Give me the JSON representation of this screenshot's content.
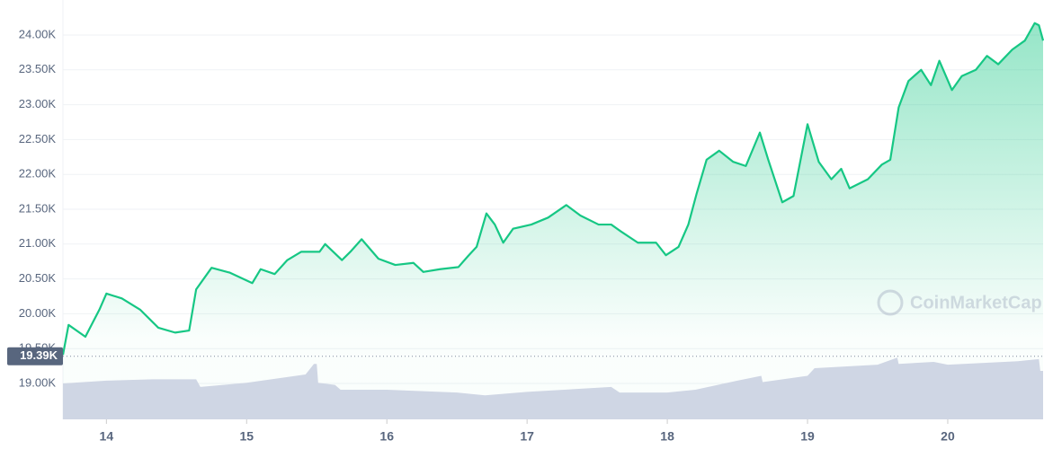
{
  "chart_data": {
    "type": "area-line",
    "watermark": "CoinMarketCap",
    "x": [
      13.69,
      13.73,
      13.85,
      13.95,
      14.0,
      14.11,
      14.24,
      14.37,
      14.49,
      14.59,
      14.64,
      14.75,
      14.88,
      15.04,
      15.1,
      15.2,
      15.29,
      15.39,
      15.52,
      15.56,
      15.68,
      15.74,
      15.82,
      15.94,
      16.06,
      16.19,
      16.26,
      16.38,
      16.51,
      16.58,
      16.64,
      16.71,
      16.77,
      16.83,
      16.9,
      17.03,
      17.15,
      17.28,
      17.38,
      17.51,
      17.6,
      17.67,
      17.79,
      17.92,
      17.99,
      18.08,
      18.15,
      18.21,
      18.28,
      18.37,
      18.47,
      18.56,
      18.66,
      18.72,
      18.82,
      18.9,
      19.0,
      19.08,
      19.17,
      19.24,
      19.3,
      19.43,
      19.53,
      19.59,
      19.65,
      19.72,
      19.81,
      19.88,
      19.94,
      20.03,
      20.1,
      20.2,
      20.28,
      20.36,
      20.46,
      20.55,
      20.62,
      20.65,
      20.68
    ],
    "series": [
      {
        "name": "Price",
        "color": "#16c784",
        "values": [
          19410,
          19840,
          19670,
          20060,
          20290,
          20220,
          20060,
          19800,
          19730,
          19760,
          20350,
          20660,
          20590,
          20440,
          20640,
          20570,
          20770,
          20890,
          20890,
          21000,
          20770,
          20890,
          21070,
          20790,
          20700,
          20730,
          20600,
          20640,
          20670,
          20830,
          20960,
          21440,
          21280,
          21020,
          21220,
          21280,
          21380,
          21560,
          21410,
          21280,
          21280,
          21180,
          21020,
          21020,
          20840,
          20960,
          21280,
          21730,
          22210,
          22340,
          22180,
          22120,
          22600,
          22210,
          21600,
          21690,
          22720,
          22180,
          21930,
          22080,
          21800,
          21930,
          22140,
          22210,
          22960,
          23340,
          23500,
          23280,
          23630,
          23210,
          23410,
          23500,
          23700,
          23580,
          23790,
          23920,
          24170,
          24140,
          23920
        ]
      }
    ],
    "volume": {
      "color": "#cfd6e4",
      "x": [
        13.69,
        14.0,
        14.33,
        14.64,
        14.67,
        15.0,
        15.42,
        15.48,
        15.5,
        15.51,
        15.63,
        15.67,
        16.0,
        16.5,
        16.7,
        17.0,
        17.6,
        17.66,
        18.0,
        18.2,
        18.5,
        18.67,
        18.68,
        19.0,
        19.05,
        19.5,
        19.64,
        19.65,
        19.9,
        20.0,
        20.5,
        20.65,
        20.66,
        20.68
      ],
      "values": [
        19000,
        19040,
        19060,
        19060,
        18950,
        19010,
        19130,
        19280,
        19280,
        19010,
        18980,
        18910,
        18910,
        18870,
        18830,
        18880,
        18950,
        18870,
        18870,
        18910,
        19040,
        19110,
        19020,
        19110,
        19220,
        19270,
        19370,
        19280,
        19310,
        19270,
        19320,
        19350,
        19180,
        19180
      ]
    },
    "marker": {
      "value": 19390,
      "label": "19.39K"
    },
    "xlim": [
      13.69,
      20.68
    ],
    "xticks": [
      14,
      15,
      16,
      17,
      18,
      19,
      20
    ],
    "ylim": [
      18485,
      24502
    ],
    "yticks": [
      {
        "value": 19000,
        "label": "19.00K"
      },
      {
        "value": 19500,
        "label": "19.50K"
      },
      {
        "value": 20000,
        "label": "20.00K"
      },
      {
        "value": 20500,
        "label": "20.50K"
      },
      {
        "value": 21000,
        "label": "21.00K"
      },
      {
        "value": 21500,
        "label": "21.50K"
      },
      {
        "value": 22000,
        "label": "22.00K"
      },
      {
        "value": 22500,
        "label": "22.50K"
      },
      {
        "value": 23000,
        "label": "23.00K"
      },
      {
        "value": 23500,
        "label": "23.50K"
      },
      {
        "value": 24000,
        "label": "24.00K"
      }
    ],
    "grid": true
  }
}
